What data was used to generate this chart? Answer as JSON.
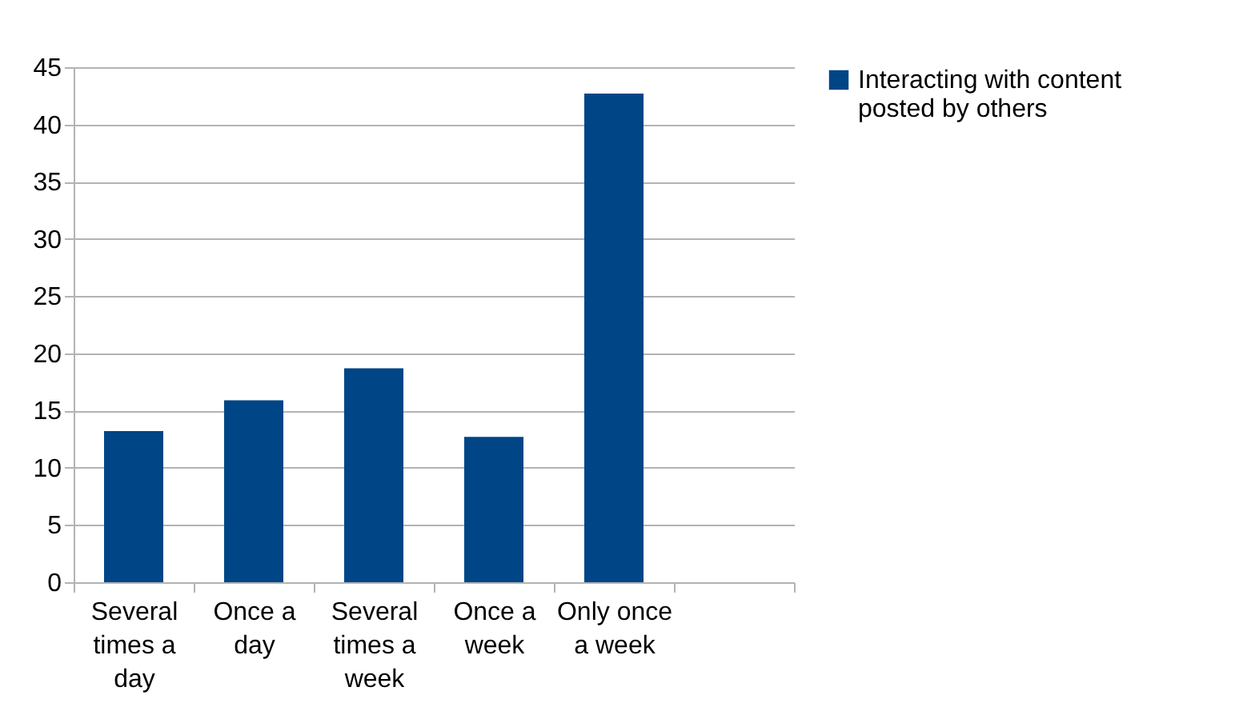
{
  "chart_data": {
    "type": "bar",
    "categories": [
      "Several times a day",
      "Once a day",
      "Several times a week",
      "Once a week",
      "Only once a week",
      null
    ],
    "series": [
      {
        "name": "Interacting with content posted by others",
        "color": "#004586",
        "values": [
          13.2,
          15.9,
          18.7,
          12.7,
          42.7,
          null
        ]
      }
    ],
    "ylim": [
      0,
      45
    ],
    "yticks": [
      0,
      5,
      10,
      15,
      20,
      25,
      30,
      35,
      40,
      45
    ],
    "grid": "y",
    "legend": "right"
  }
}
